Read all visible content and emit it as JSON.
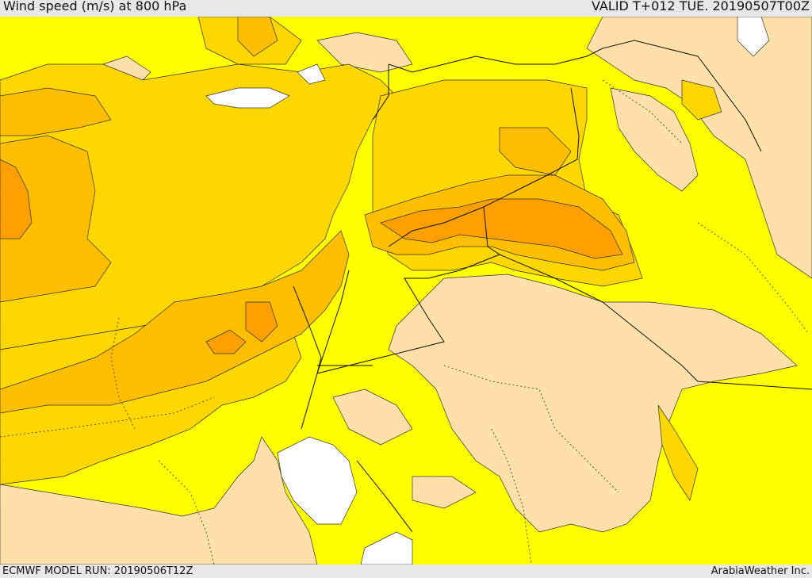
{
  "header": {
    "title": "Wind speed (m/s) at 800 hPa",
    "valid": "VALID T+012 TUE. 20190507T00Z"
  },
  "footer": {
    "model_run": "ECMWF MODEL RUN: 20190506T12Z",
    "credit": "ArabiaWeather Inc."
  },
  "colors": {
    "calm": "#ffffff",
    "light": "#ffe0a8",
    "moderate": "#ffff00",
    "fresh": "#ffd700",
    "strong": "#ffbe00",
    "very_strong": "#ff9f00",
    "border": "#222222"
  }
}
